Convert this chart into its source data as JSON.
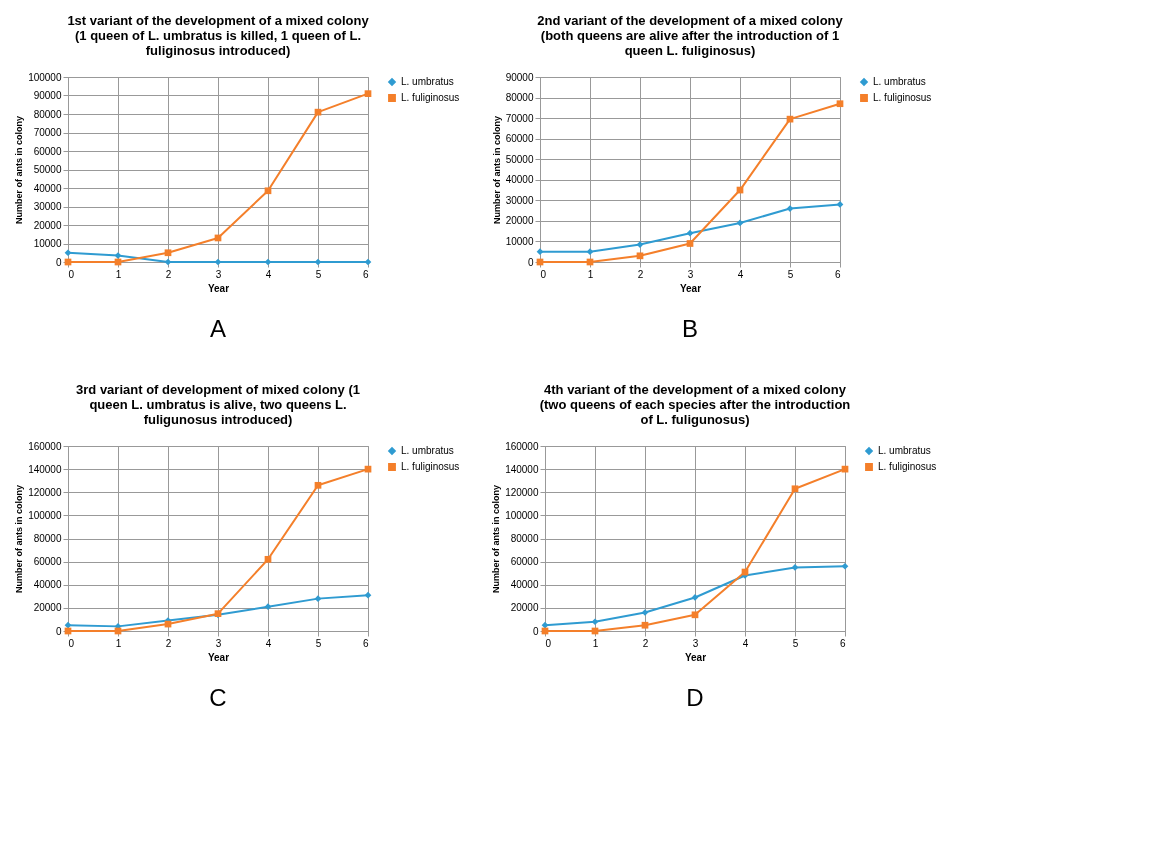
{
  "chart_data": [
    {
      "type": "line",
      "title": "1st variant of the development of a mixed colony (1 queen of L. umbratus is killed, 1 queen of L. fuliginosus introduced)",
      "xlabel": "Year",
      "ylabel": "Number of ants in colony",
      "x": [
        0,
        1,
        2,
        3,
        4,
        5,
        6
      ],
      "xlim": [
        0,
        6
      ],
      "xticks": [
        0,
        1,
        2,
        3,
        4,
        5,
        6
      ],
      "ylim": [
        0,
        100000
      ],
      "yticks": [
        0,
        10000,
        20000,
        30000,
        40000,
        50000,
        60000,
        70000,
        80000,
        90000,
        100000
      ],
      "grid": true,
      "legend": "right",
      "annotations": [
        "A"
      ],
      "series": [
        {
          "name": "L. umbratus",
          "color": "#2f9bd1",
          "marker": "diamond",
          "values": [
            5000,
            3500,
            0,
            0,
            0,
            0,
            0
          ]
        },
        {
          "name": "L. fuliginosus",
          "color": "#f47f2a",
          "marker": "square",
          "values": [
            0,
            0,
            5000,
            13000,
            38500,
            81000,
            91000
          ]
        }
      ]
    },
    {
      "type": "line",
      "title": "2nd variant of the development of a mixed colony (both queens are alive after the introduction of 1 queen L. fuliginosus)",
      "xlabel": "Year",
      "ylabel": "Number of ants in colony",
      "x": [
        0,
        1,
        2,
        3,
        4,
        5,
        6
      ],
      "xlim": [
        0,
        6
      ],
      "xticks": [
        0,
        1,
        2,
        3,
        4,
        5,
        6
      ],
      "ylim": [
        0,
        90000
      ],
      "yticks": [
        0,
        10000,
        20000,
        30000,
        40000,
        50000,
        60000,
        70000,
        80000,
        90000
      ],
      "grid": true,
      "legend": "right",
      "annotations": [
        "B"
      ],
      "series": [
        {
          "name": "L. umbratus",
          "color": "#2f9bd1",
          "marker": "diamond",
          "values": [
            5000,
            5000,
            8500,
            14000,
            19000,
            26000,
            28000
          ]
        },
        {
          "name": "L. fuliginosus",
          "color": "#f47f2a",
          "marker": "square",
          "values": [
            0,
            0,
            3000,
            9000,
            35000,
            69500,
            77000
          ]
        }
      ]
    },
    {
      "type": "line",
      "title": "3rd variant of development of mixed colony (1 queen L. umbratus is alive, two queens L. fuligunosus introduced)",
      "xlabel": "Year",
      "ylabel": "Number of ants in colony",
      "x": [
        0,
        1,
        2,
        3,
        4,
        5,
        6
      ],
      "xlim": [
        0,
        6
      ],
      "xticks": [
        0,
        1,
        2,
        3,
        4,
        5,
        6
      ],
      "ylim": [
        0,
        160000
      ],
      "yticks": [
        0,
        20000,
        40000,
        60000,
        80000,
        100000,
        120000,
        140000,
        160000
      ],
      "grid": true,
      "legend": "right",
      "annotations": [
        "C"
      ],
      "series": [
        {
          "name": "L. umbratus",
          "color": "#2f9bd1",
          "marker": "diamond",
          "values": [
            5000,
            4000,
            9000,
            14000,
            21000,
            28000,
            31000
          ]
        },
        {
          "name": "L. fuliginosus",
          "color": "#f47f2a",
          "marker": "square",
          "values": [
            0,
            0,
            6000,
            15000,
            62000,
            126000,
            140000
          ]
        }
      ]
    },
    {
      "type": "line",
      "title": "4th variant of the development of a mixed colony (two queens of each species after the introduction of L. fuligunosus)",
      "xlabel": "Year",
      "ylabel": "Number of ants in colony",
      "x": [
        0,
        1,
        2,
        3,
        4,
        5,
        6
      ],
      "xlim": [
        0,
        6
      ],
      "xticks": [
        0,
        1,
        2,
        3,
        4,
        5,
        6
      ],
      "ylim": [
        0,
        160000
      ],
      "yticks": [
        0,
        20000,
        40000,
        60000,
        80000,
        100000,
        120000,
        140000,
        160000
      ],
      "grid": true,
      "legend": "right",
      "annotations": [
        "D"
      ],
      "series": [
        {
          "name": "L. umbratus",
          "color": "#2f9bd1",
          "marker": "diamond",
          "values": [
            5000,
            8000,
            16000,
            29000,
            48000,
            55000,
            56000
          ]
        },
        {
          "name": "L. fuliginosus",
          "color": "#f47f2a",
          "marker": "square",
          "values": [
            0,
            0,
            5000,
            14000,
            51000,
            123000,
            140000
          ]
        }
      ]
    }
  ]
}
